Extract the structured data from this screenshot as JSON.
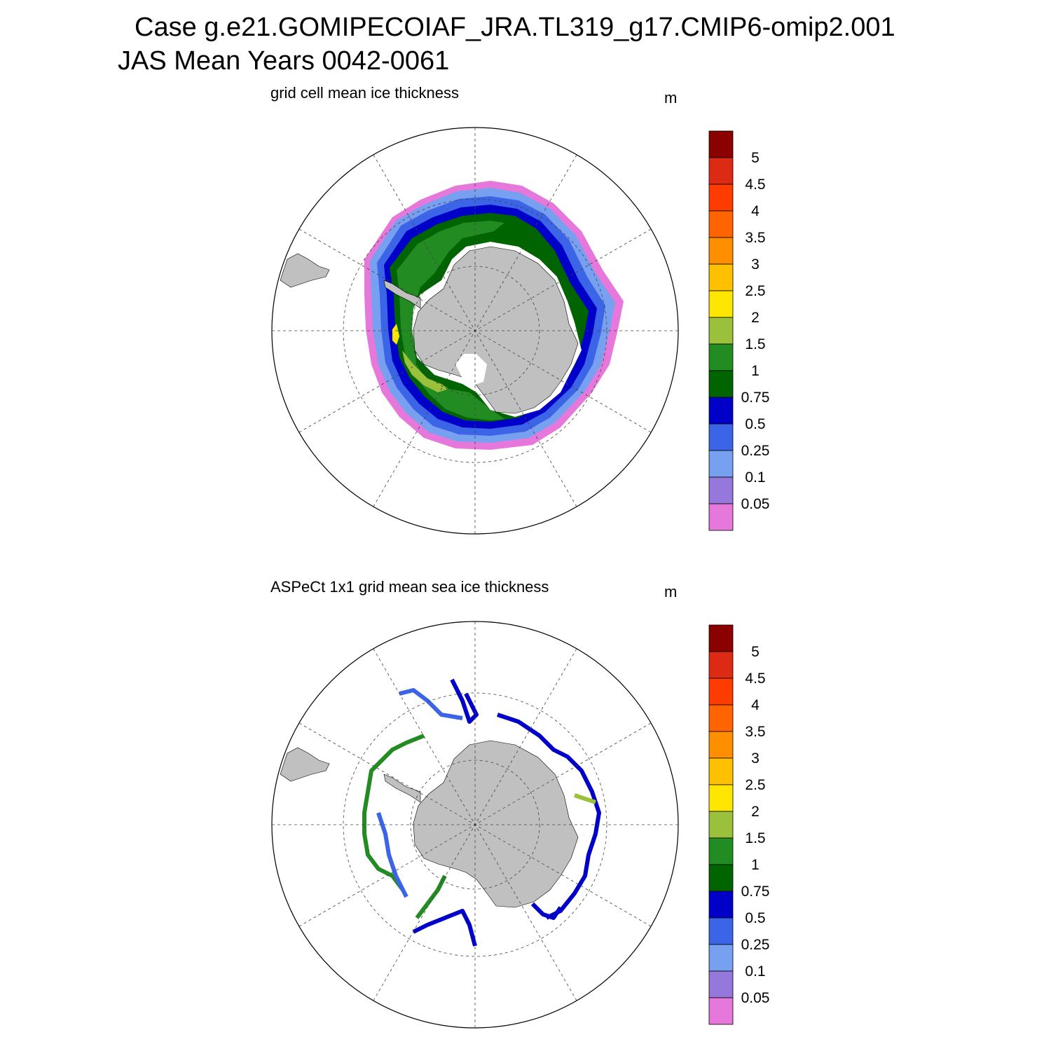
{
  "title": {
    "line1": "Case g.e21.GOMIPECOIAF_JRA.TL319_g17.CMIP6-omip2.001",
    "line2": "JAS Mean   Years 0042-0061"
  },
  "panels": [
    {
      "title": "grid cell mean ice thickness",
      "unit": "m"
    },
    {
      "title": "ASPeCt 1x1 grid mean sea ice thickness",
      "unit": "m"
    }
  ],
  "colorbar": {
    "levels": [
      "5",
      "4.5",
      "4",
      "3.5",
      "3",
      "2.5",
      "2",
      "1.5",
      "1",
      "0.75",
      "0.5",
      "0.25",
      "0.1",
      "0.05"
    ],
    "colors": [
      "#8b0000",
      "#dc2a14",
      "#ff3c00",
      "#ff6400",
      "#ff8f00",
      "#ffc000",
      "#ffe600",
      "#9bc03c",
      "#228b22",
      "#006400",
      "#0000c8",
      "#3c64e6",
      "#78a0f0",
      "#9678dc",
      "#e678dc"
    ]
  },
  "map": {
    "projection": "south-polar-stereographic",
    "land_color": "#c0c0c0",
    "grid": "dashed"
  }
}
